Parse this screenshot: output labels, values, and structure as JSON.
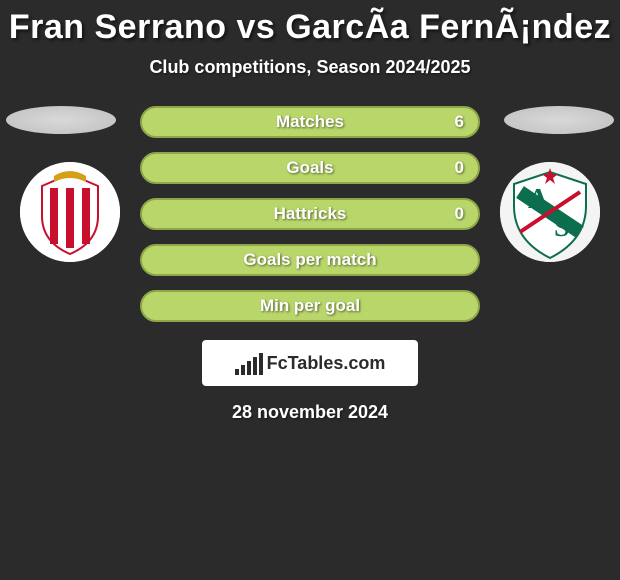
{
  "header": {
    "title": "Fran Serrano vs GarcÃ­a FernÃ¡ndez",
    "subtitle": "Club competitions, Season 2024/2025"
  },
  "stats": {
    "bar_bg": "#b9d66a",
    "bar_border": "#8fa648",
    "rows": [
      {
        "label": "Matches",
        "right_value": "6"
      },
      {
        "label": "Goals",
        "right_value": "0"
      },
      {
        "label": "Hattricks",
        "right_value": "0"
      },
      {
        "label": "Goals per match",
        "right_value": ""
      },
      {
        "label": "Min per goal",
        "right_value": ""
      }
    ]
  },
  "badges": {
    "left": {
      "bg": "#ffffff",
      "stripe1": "#c8102e",
      "stripe2": "#ffffff",
      "crown": "#d4a017"
    },
    "right": {
      "bg": "#f4f4f4",
      "accent": "#0b6e4f",
      "red": "#c8102e",
      "star": "#c8102e"
    }
  },
  "logo": {
    "text": "FcTables.com",
    "icon_bars": [
      6,
      10,
      14,
      18,
      22
    ],
    "icon_color": "#2b2b2b"
  },
  "date": "28 november 2024",
  "colors": {
    "page_bg": "#2b2b2b",
    "text": "#ffffff"
  }
}
